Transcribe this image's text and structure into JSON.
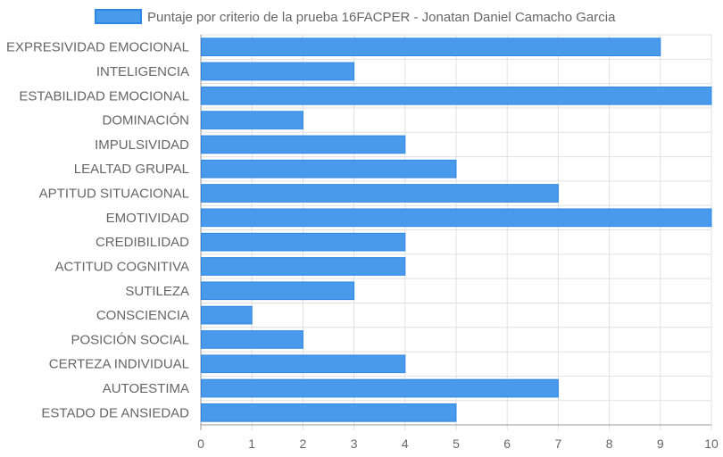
{
  "chart_data": {
    "type": "bar",
    "orientation": "horizontal",
    "categories": [
      "EXPRESIVIDAD EMOCIONAL",
      "INTELIGENCIA",
      "ESTABILIDAD EMOCIONAL",
      "DOMINACIÓN",
      "IMPULSIVIDAD",
      "LEALTAD GRUPAL",
      "APTITUD SITUACIONAL",
      "EMOTIVIDAD",
      "CREDIBILIDAD",
      "ACTITUD COGNITIVA",
      "SUTILEZA",
      "CONSCIENCIA",
      "POSICIÓN SOCIAL",
      "CERTEZA INDIVIDUAL",
      "AUTOESTIMA",
      "ESTADO DE ANSIEDAD"
    ],
    "series": [
      {
        "name": "Puntaje por criterio de la prueba 16FACPER - Jonatan Daniel Camacho Garcia",
        "values": [
          9,
          3,
          10,
          2,
          4,
          5,
          7,
          10,
          4,
          4,
          3,
          1,
          2,
          4,
          7,
          5
        ],
        "color": "#4a9aeb",
        "border_color": "#2d87e6"
      }
    ],
    "xlim": [
      0,
      10
    ],
    "x_ticks": [
      0,
      1,
      2,
      3,
      4,
      5,
      6,
      7,
      8,
      9,
      10
    ],
    "grid": true,
    "legend_position": "top-center",
    "grid_color": "#e0e0e0",
    "axis_color": "#999999"
  }
}
